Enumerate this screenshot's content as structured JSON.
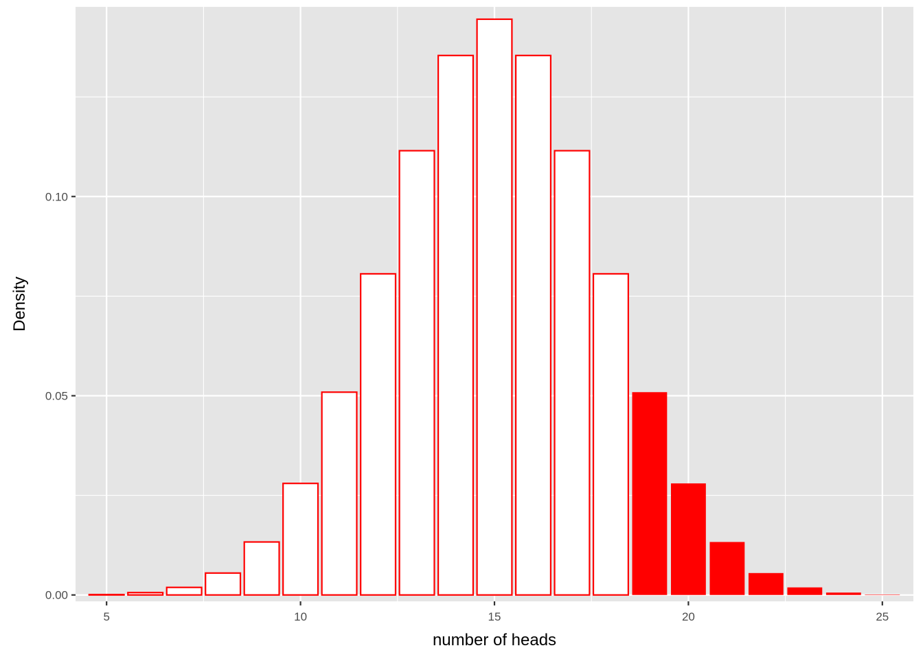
{
  "chart_data": {
    "type": "bar",
    "title": "",
    "xlabel": "number of heads",
    "ylabel": "Density",
    "x": [
      5,
      6,
      7,
      8,
      9,
      10,
      11,
      12,
      13,
      14,
      15,
      16,
      17,
      18,
      19,
      20,
      21,
      22,
      23,
      24,
      25
    ],
    "values": [
      0.0001,
      0.0006,
      0.0019,
      0.0055,
      0.0133,
      0.028,
      0.0509,
      0.0806,
      0.1115,
      0.1354,
      0.1445,
      0.1354,
      0.1115,
      0.0806,
      0.0509,
      0.028,
      0.0133,
      0.0055,
      0.0019,
      0.0006,
      0.0001
    ],
    "highlighted_from_x": 19,
    "xlim": [
      4.2,
      25.8
    ],
    "ylim": [
      -0.0016,
      0.1476
    ],
    "x_ticks": [
      5,
      10,
      15,
      20,
      25
    ],
    "x_tick_labels": [
      "5",
      "10",
      "15",
      "20",
      "25"
    ],
    "y_ticks": [
      0,
      0.05,
      0.1
    ],
    "y_tick_labels": [
      "0.00",
      "0.05",
      "0.10"
    ],
    "grid": true,
    "legend": "none",
    "colors": {
      "panel_background": "#e5e5e5",
      "grid_line": "#ffffff",
      "bar_outline": "#ff0000",
      "bar_fill": "#ffffff",
      "highlight_fill": "#ff0000"
    }
  }
}
